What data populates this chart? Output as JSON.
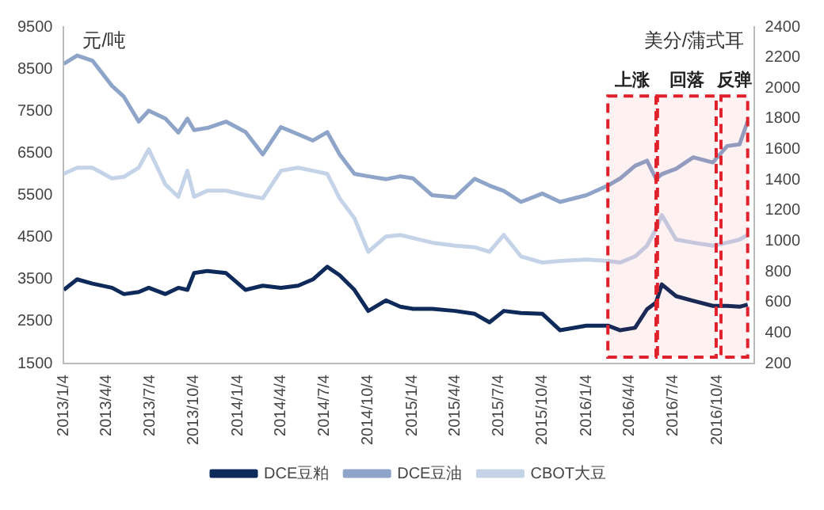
{
  "chart_data": {
    "type": "line",
    "ylabel": "元/吨",
    "y2label": "美分/蒲式耳",
    "x": [
      "2013-01-04",
      "2013-02-01",
      "2013-03-05",
      "2013-04-15",
      "2013-05-10",
      "2013-06-10",
      "2013-07-01",
      "2013-08-05",
      "2013-09-01",
      "2013-09-20",
      "2013-10-04",
      "2013-11-01",
      "2013-12-10",
      "2014-01-20",
      "2014-02-25",
      "2014-04-04",
      "2014-05-10",
      "2014-06-10",
      "2014-07-10",
      "2014-08-05",
      "2014-09-05",
      "2014-10-04",
      "2014-11-10",
      "2014-12-10",
      "2015-01-06",
      "2015-02-15",
      "2015-04-04",
      "2015-05-15",
      "2015-06-15",
      "2015-07-15",
      "2015-08-20",
      "2015-10-04",
      "2015-11-10",
      "2016-01-04",
      "2016-02-18",
      "2016-03-15",
      "2016-04-15",
      "2016-05-10",
      "2016-05-29",
      "2016-06-10",
      "2016-07-10",
      "2016-08-15",
      "2016-09-25",
      "2016-10-25",
      "2016-11-20",
      "2016-12-07"
    ],
    "series": [
      {
        "name": "DCE豆粕",
        "color": "#0e2a5a",
        "values": [
          3250,
          3500,
          3400,
          3300,
          3150,
          3200,
          3300,
          3150,
          3300,
          3250,
          3650,
          3700,
          3650,
          3250,
          3350,
          3300,
          3350,
          3500,
          3800,
          3600,
          3250,
          2750,
          3000,
          2850,
          2800,
          2800,
          2750,
          2680,
          2480,
          2750,
          2700,
          2680,
          2290,
          2400,
          2400,
          2290,
          2350,
          2790,
          2950,
          3380,
          3100,
          2990,
          2870,
          2870,
          2850,
          2900
        ]
      },
      {
        "name": "DCE豆油",
        "color": "#8ea4c8",
        "values": [
          8620,
          8820,
          8700,
          8100,
          7840,
          7250,
          7510,
          7320,
          6990,
          7320,
          7050,
          7100,
          7250,
          7000,
          6470,
          7120,
          6950,
          6800,
          7000,
          6470,
          6010,
          5950,
          5880,
          5950,
          5900,
          5500,
          5450,
          5890,
          5730,
          5600,
          5340,
          5540,
          5340,
          5500,
          5730,
          5900,
          6200,
          6320,
          5890,
          6000,
          6130,
          6400,
          6280,
          6670,
          6710,
          7260
        ]
      },
      {
        "name": "CBOT大豆",
        "color": "#c5d3e8",
        "axis": "y2",
        "values": [
          1440,
          1480,
          1480,
          1410,
          1420,
          1480,
          1600,
          1370,
          1290,
          1460,
          1290,
          1330,
          1330,
          1300,
          1280,
          1460,
          1480,
          1460,
          1440,
          1280,
          1150,
          930,
          1030,
          1040,
          1020,
          990,
          970,
          960,
          930,
          1040,
          900,
          860,
          870,
          880,
          870,
          860,
          900,
          970,
          1080,
          1170,
          1010,
          990,
          970,
          990,
          1010,
          1040
        ]
      }
    ],
    "xlim": [
      "2013-01-04",
      "2016-12-20"
    ],
    "xticks": [
      {
        "value": "2013-01-04",
        "label": "2013/1/4"
      },
      {
        "value": "2013-04-04",
        "label": "2013/4/4"
      },
      {
        "value": "2013-07-04",
        "label": "2013/7/4"
      },
      {
        "value": "2013-10-04",
        "label": "2013/10/4"
      },
      {
        "value": "2014-01-04",
        "label": "2014/1/4"
      },
      {
        "value": "2014-04-04",
        "label": "2014/4/4"
      },
      {
        "value": "2014-07-04",
        "label": "2014/7/4"
      },
      {
        "value": "2014-10-04",
        "label": "2014/10/4"
      },
      {
        "value": "2015-01-04",
        "label": "2015/1/4"
      },
      {
        "value": "2015-04-04",
        "label": "2015/4/4"
      },
      {
        "value": "2015-07-04",
        "label": "2015/7/4"
      },
      {
        "value": "2015-10-04",
        "label": "2015/10/4"
      },
      {
        "value": "2016-01-04",
        "label": "2016/1/4"
      },
      {
        "value": "2016-04-04",
        "label": "2016/4/4"
      },
      {
        "value": "2016-07-04",
        "label": "2016/7/4"
      },
      {
        "value": "2016-10-04",
        "label": "2016/10/4"
      }
    ],
    "ylim": [
      1500,
      9500
    ],
    "yticks": [
      1500,
      2500,
      3500,
      4500,
      5500,
      6500,
      7500,
      8500,
      9500
    ],
    "y2lim": [
      200,
      2400
    ],
    "y2ticks": [
      200,
      400,
      600,
      800,
      1000,
      1200,
      1400,
      1600,
      1800,
      2000,
      2200,
      2400
    ],
    "bands": [
      {
        "axis": "x",
        "from": "2016-02-18",
        "to": "2016-05-29",
        "label": "上涨",
        "color": "#e0202a"
      },
      {
        "axis": "x",
        "from": "2016-06-01",
        "to": "2016-10-02",
        "label": "回落",
        "color": "#e0202a"
      },
      {
        "axis": "x",
        "from": "2016-10-12",
        "to": "2016-12-07",
        "label": "反弹",
        "color": "#e0202a"
      }
    ],
    "grid": false,
    "legend": "bottom",
    "marker": "none",
    "line_style": "solid"
  }
}
